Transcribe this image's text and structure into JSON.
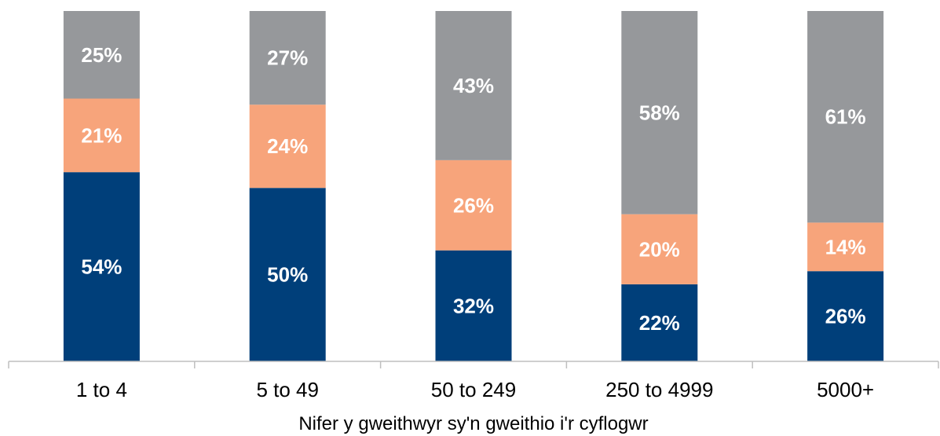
{
  "chart_data": {
    "type": "bar",
    "stacked": true,
    "percent_stacked": true,
    "xlabel": "Nifer y gweithwyr sy'n gweithio i'r cyflogwr",
    "ylabel": "",
    "ylim": [
      0,
      100
    ],
    "grid": false,
    "legend": "none",
    "categories": [
      "1 to 4",
      "5 to 49",
      "50 to 249",
      "250 to 4999",
      "5000+"
    ],
    "series": [
      {
        "color": "#003f7a",
        "values": [
          54,
          50,
          32,
          22,
          26
        ]
      },
      {
        "color": "#f7a47b",
        "values": [
          21,
          24,
          26,
          20,
          14
        ]
      },
      {
        "color": "#96989b",
        "values": [
          25,
          27,
          43,
          58,
          61
        ]
      }
    ],
    "value_labels": [
      [
        "54%",
        "50%",
        "32%",
        "22%",
        "26%"
      ],
      [
        "21%",
        "24%",
        "26%",
        "20%",
        "14%"
      ],
      [
        "25%",
        "27%",
        "43%",
        "58%",
        "61%"
      ]
    ]
  }
}
